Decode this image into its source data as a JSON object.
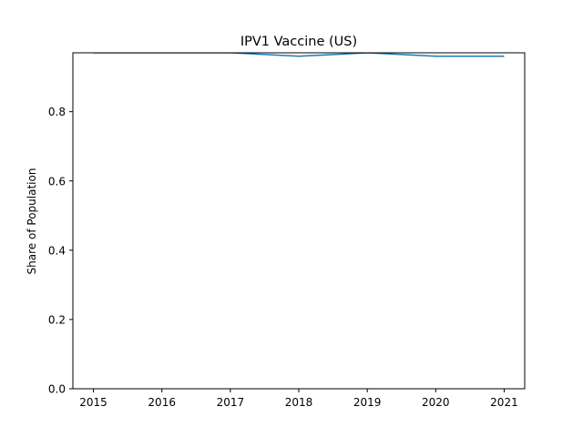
{
  "chart_data": {
    "type": "line",
    "title": "IPV1 Vaccine (US)",
    "xlabel": "",
    "ylabel": "Share of Population",
    "x": [
      "2015",
      "2016",
      "2017",
      "2018",
      "2019",
      "2020",
      "2021"
    ],
    "series": [
      {
        "values": [
          0.97,
          0.97,
          0.97,
          0.96,
          0.97,
          0.96,
          0.96
        ]
      }
    ],
    "xlim": [
      2014.7,
      2021.3
    ],
    "ylim": [
      0,
      0.97
    ],
    "yticks": [
      0.0,
      0.2,
      0.4,
      0.6,
      0.8
    ],
    "ytick_labels": [
      "0.0",
      "0.2",
      "0.4",
      "0.6",
      "0.8"
    ],
    "grid": false,
    "line_color": "#1f77b4"
  }
}
